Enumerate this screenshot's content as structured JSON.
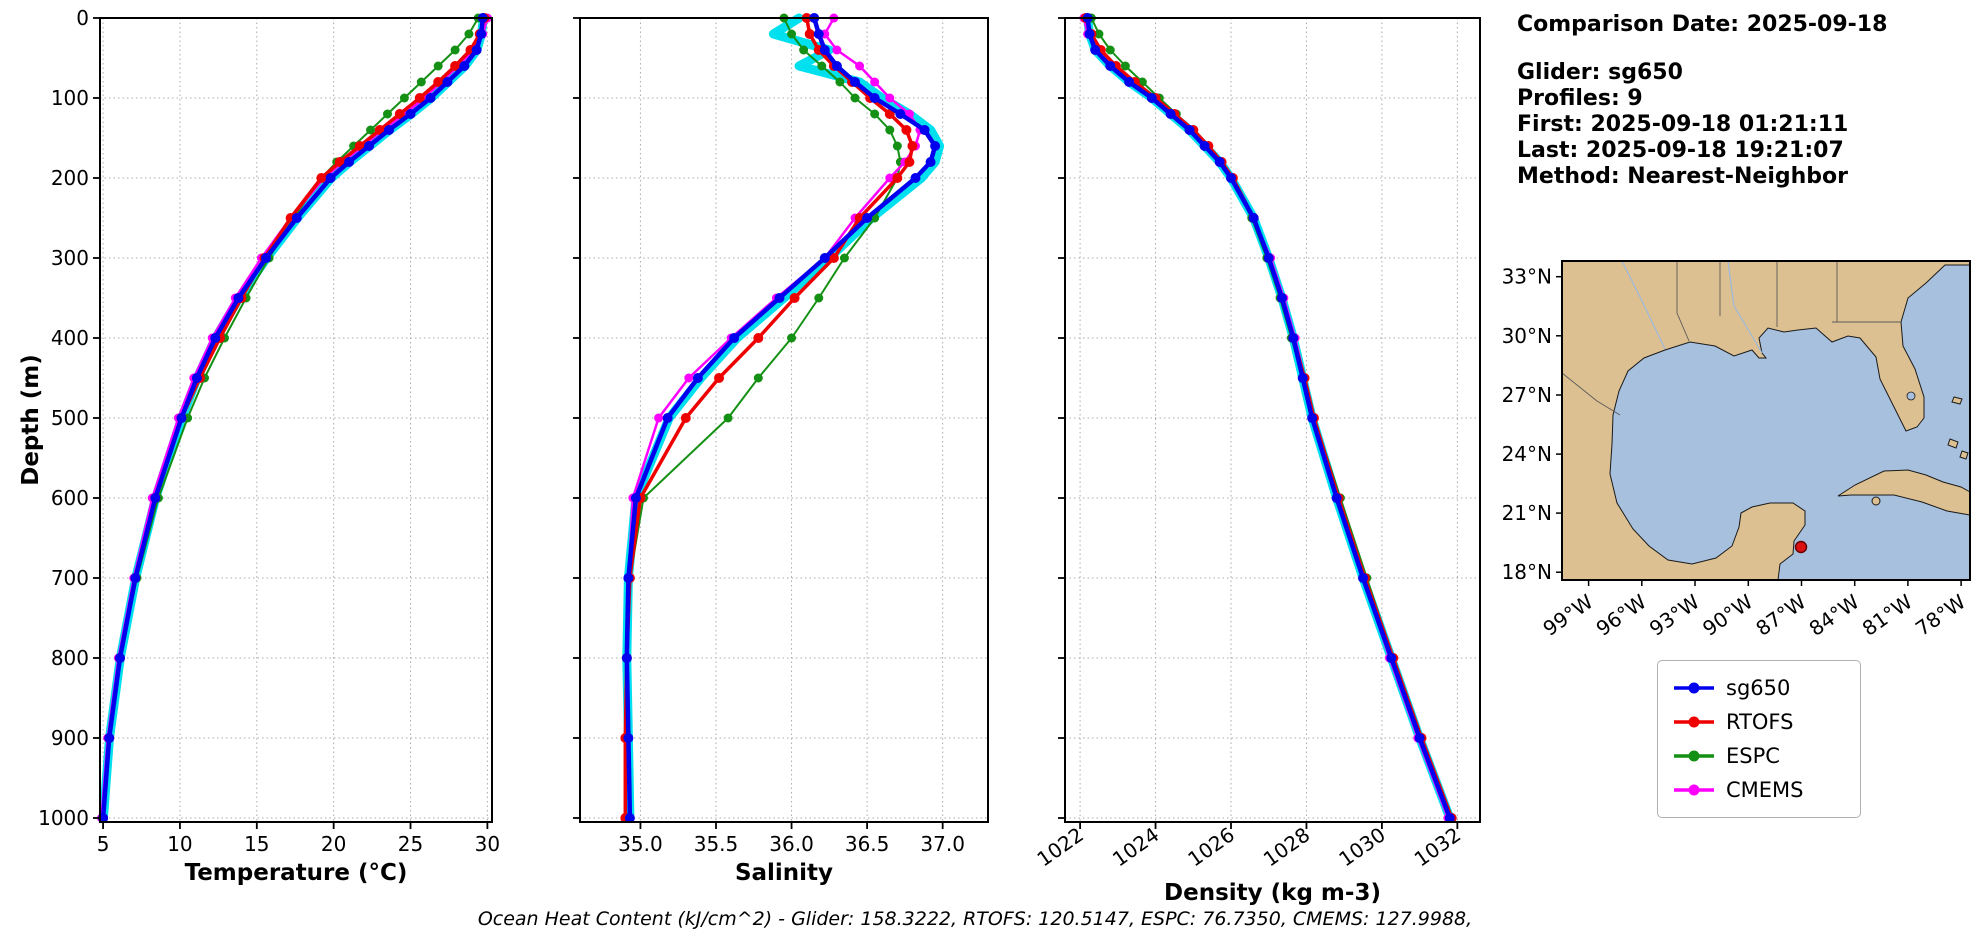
{
  "info_panel": {
    "comparison_date": "Comparison Date: 2025-09-18",
    "glider": "Glider: sg650",
    "profiles": "Profiles: 9",
    "first": "First: 2025-09-18 01:21:11",
    "last": "Last: 2025-09-18 19:21:07",
    "method": "Method: Nearest-Neighbor"
  },
  "footer_caption": "Ocean Heat Content (kJ/cm^2) - Glider: 158.3222,  RTOFS: 120.5147,  ESPC: 76.7350,  CMEMS: 127.9988,",
  "legend": {
    "items": [
      {
        "label": "sg650",
        "color": "#0000ee"
      },
      {
        "label": "RTOFS",
        "color": "#ee0000"
      },
      {
        "label": "ESPC",
        "color": "#149114"
      },
      {
        "label": "CMEMS",
        "color": "#ff00ff"
      }
    ]
  },
  "map": {
    "lat_ticks": [
      "33°N",
      "30°N",
      "27°N",
      "24°N",
      "21°N",
      "18°N"
    ],
    "lon_ticks": [
      "99°W",
      "96°W",
      "93°W",
      "90°W",
      "87°W",
      "84°W",
      "81°W",
      "78°W"
    ],
    "land_color": "#dcc091",
    "water_color": "#a7c0de",
    "coast_color": "#1a1a1a",
    "border_color": "#5a5a5a",
    "river_color": "#9db9dd",
    "marker_color": "#dd1111",
    "marker_edge": "#660000"
  },
  "chart_data": [
    {
      "id": "temperature",
      "type": "line",
      "xlabel": "Temperature (°C)",
      "ylabel": "Depth (m)",
      "xlim": [
        4.8,
        30.3
      ],
      "ylim": [
        0,
        1005
      ],
      "xticks": [
        5,
        10,
        15,
        20,
        25,
        30
      ],
      "xtick_labels": [
        "5",
        "10",
        "15",
        "20",
        "25",
        "30"
      ],
      "yticks": [
        0,
        100,
        200,
        300,
        400,
        500,
        600,
        700,
        800,
        900,
        1000
      ],
      "show_ytick_labels": true,
      "xtick_rotation": 0,
      "grid": true,
      "depths": [
        0,
        20,
        40,
        60,
        80,
        100,
        120,
        140,
        160,
        180,
        200,
        250,
        300,
        350,
        400,
        450,
        500,
        600,
        700,
        800,
        900,
        1000
      ],
      "envelope": {
        "name": "sg650 raw profiles",
        "color": "#00e0ee",
        "values": [
          29.75,
          29.62,
          29.32,
          28.55,
          27.45,
          26.35,
          25.05,
          23.65,
          22.35,
          21.05,
          19.85,
          17.65,
          15.65,
          13.85,
          12.32,
          11.12,
          10.12,
          8.42,
          7.12,
          6.12,
          5.42,
          5.02
        ]
      },
      "series": [
        {
          "name": "sg650",
          "color": "#0000ee",
          "values": [
            29.7,
            29.6,
            29.3,
            28.5,
            27.4,
            26.3,
            25.0,
            23.6,
            22.3,
            21.0,
            19.8,
            17.6,
            15.6,
            13.8,
            12.3,
            11.1,
            10.1,
            8.4,
            7.1,
            6.1,
            5.4,
            5.0
          ]
        },
        {
          "name": "RTOFS",
          "color": "#ee0000",
          "values": [
            29.8,
            29.5,
            28.9,
            27.9,
            26.8,
            25.6,
            24.3,
            23.0,
            21.7,
            20.4,
            19.2,
            17.2,
            15.5,
            14.0,
            12.6,
            11.3,
            10.1,
            8.4,
            7.1,
            6.1,
            5.4,
            5.0
          ]
        },
        {
          "name": "ESPC",
          "color": "#149114",
          "values": [
            29.4,
            28.8,
            27.9,
            26.8,
            25.7,
            24.6,
            23.5,
            22.4,
            21.3,
            20.2,
            19.2,
            17.4,
            15.8,
            14.3,
            12.9,
            11.6,
            10.5,
            8.6,
            7.2,
            6.1,
            5.4,
            5.0
          ]
        },
        {
          "name": "CMEMS",
          "color": "#ff00ff",
          "values": [
            30.0,
            29.7,
            29.1,
            28.1,
            27.0,
            25.9,
            24.6,
            23.2,
            21.9,
            20.6,
            19.4,
            17.2,
            15.3,
            13.6,
            12.1,
            10.9,
            9.9,
            8.2,
            7.0,
            6.0,
            5.3,
            4.9
          ]
        }
      ]
    },
    {
      "id": "salinity",
      "type": "line",
      "xlabel": "Salinity",
      "ylabel": "",
      "xlim": [
        34.6,
        37.3
      ],
      "ylim": [
        0,
        1005
      ],
      "xticks": [
        35.0,
        35.5,
        36.0,
        36.5,
        37.0
      ],
      "xtick_labels": [
        "35.0",
        "35.5",
        "36.0",
        "36.5",
        "37.0"
      ],
      "yticks": [
        0,
        100,
        200,
        300,
        400,
        500,
        600,
        700,
        800,
        900,
        1000
      ],
      "show_ytick_labels": false,
      "xtick_rotation": 0,
      "grid": true,
      "depths": [
        0,
        20,
        40,
        60,
        80,
        100,
        120,
        140,
        160,
        180,
        200,
        250,
        300,
        350,
        400,
        450,
        500,
        600,
        700,
        800,
        900,
        1000
      ],
      "envelope": {
        "name": "sg650 raw profiles",
        "color": "#00e0ee",
        "values": [
          36.05,
          35.88,
          36.25,
          36.05,
          36.45,
          36.6,
          36.78,
          36.92,
          36.98,
          36.95,
          36.86,
          36.53,
          36.25,
          35.95,
          35.64,
          35.4,
          35.19,
          34.97,
          34.92,
          34.91,
          34.92,
          34.93
        ]
      },
      "series": [
        {
          "name": "sg650",
          "color": "#0000ee",
          "values": [
            36.15,
            36.18,
            36.22,
            36.3,
            36.42,
            36.55,
            36.72,
            36.88,
            36.95,
            36.92,
            36.82,
            36.5,
            36.22,
            35.92,
            35.62,
            35.38,
            35.18,
            34.97,
            34.92,
            34.91,
            34.92,
            34.93
          ]
        },
        {
          "name": "RTOFS",
          "color": "#ee0000",
          "values": [
            36.1,
            36.12,
            36.18,
            36.28,
            36.4,
            36.52,
            36.65,
            36.76,
            36.8,
            36.78,
            36.7,
            36.45,
            36.28,
            36.02,
            35.78,
            35.52,
            35.3,
            35.0,
            34.93,
            34.91,
            34.9,
            34.9
          ]
        },
        {
          "name": "ESPC",
          "color": "#149114",
          "values": [
            35.95,
            36.0,
            36.08,
            36.2,
            36.32,
            36.42,
            36.55,
            36.65,
            36.7,
            36.72,
            36.7,
            36.55,
            36.35,
            36.18,
            36.0,
            35.78,
            35.58,
            35.02,
            34.93,
            34.91,
            34.9,
            34.9
          ]
        },
        {
          "name": "CMEMS",
          "color": "#ff00ff",
          "values": [
            36.28,
            36.22,
            36.3,
            36.45,
            36.55,
            36.65,
            36.78,
            36.85,
            36.82,
            36.75,
            36.65,
            36.42,
            36.22,
            35.9,
            35.6,
            35.32,
            35.12,
            34.95,
            34.92,
            34.91,
            34.92,
            34.93
          ]
        }
      ]
    },
    {
      "id": "density",
      "type": "line",
      "xlabel": "Density (kg m-3)",
      "ylabel": "",
      "xlim": [
        1021.6,
        1032.6
      ],
      "ylim": [
        0,
        1005
      ],
      "xticks": [
        1022,
        1024,
        1026,
        1028,
        1030,
        1032
      ],
      "xtick_labels": [
        "1022",
        "1024",
        "1026",
        "1028",
        "1030",
        "1032"
      ],
      "yticks": [
        0,
        100,
        200,
        300,
        400,
        500,
        600,
        700,
        800,
        900,
        1000
      ],
      "show_ytick_labels": false,
      "xtick_rotation": 35,
      "grid": true,
      "depths": [
        0,
        20,
        40,
        60,
        80,
        100,
        120,
        140,
        160,
        180,
        200,
        250,
        300,
        350,
        400,
        450,
        500,
        600,
        700,
        800,
        900,
        1000
      ],
      "envelope": {
        "name": "sg650 raw profiles",
        "color": "#00e0ee",
        "values": [
          1022.2,
          1022.25,
          1022.4,
          1022.8,
          1023.3,
          1023.9,
          1024.4,
          1024.9,
          1025.3,
          1025.7,
          1026.0,
          1026.6,
          1027.0,
          1027.35,
          1027.65,
          1027.9,
          1028.15,
          1028.8,
          1029.5,
          1030.25,
          1031.0,
          1031.8
        ]
      },
      "series": [
        {
          "name": "sg650",
          "color": "#0000ee",
          "values": [
            1022.2,
            1022.25,
            1022.4,
            1022.8,
            1023.3,
            1023.9,
            1024.4,
            1024.9,
            1025.3,
            1025.7,
            1026.0,
            1026.6,
            1027.0,
            1027.35,
            1027.65,
            1027.9,
            1028.15,
            1028.8,
            1029.5,
            1030.25,
            1031.0,
            1031.8
          ]
        },
        {
          "name": "RTOFS",
          "color": "#ee0000",
          "values": [
            1022.15,
            1022.3,
            1022.55,
            1022.95,
            1023.45,
            1024.0,
            1024.5,
            1025.0,
            1025.4,
            1025.75,
            1026.05,
            1026.6,
            1027.0,
            1027.35,
            1027.65,
            1027.95,
            1028.2,
            1028.85,
            1029.55,
            1030.3,
            1031.05,
            1031.85
          ]
        },
        {
          "name": "ESPC",
          "color": "#149114",
          "values": [
            1022.3,
            1022.5,
            1022.8,
            1023.2,
            1023.65,
            1024.1,
            1024.55,
            1025.0,
            1025.4,
            1025.7,
            1026.0,
            1026.55,
            1026.95,
            1027.3,
            1027.6,
            1027.9,
            1028.2,
            1028.9,
            1029.6,
            1030.3,
            1031.0,
            1031.8
          ]
        },
        {
          "name": "CMEMS",
          "color": "#ff00ff",
          "values": [
            1022.1,
            1022.2,
            1022.45,
            1022.85,
            1023.35,
            1023.9,
            1024.45,
            1024.95,
            1025.35,
            1025.7,
            1026.0,
            1026.6,
            1027.05,
            1027.4,
            1027.7,
            1027.95,
            1028.2,
            1028.8,
            1029.5,
            1030.2,
            1030.95,
            1031.75
          ]
        }
      ]
    }
  ]
}
